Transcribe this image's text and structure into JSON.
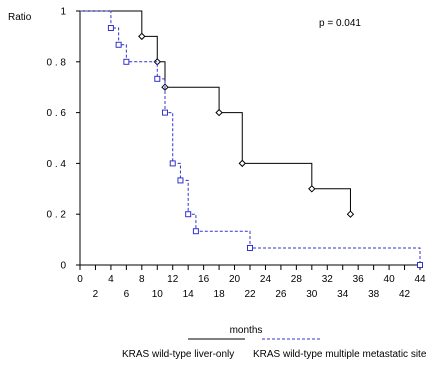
{
  "chart_data": {
    "type": "line",
    "subtype": "kaplan-meier step",
    "ylabel": "Ratio",
    "xlabel": "months",
    "annotation": "p = 0.041",
    "xlim": [
      0,
      44
    ],
    "ylim": [
      0,
      1
    ],
    "x_ticks_upper": [
      "0",
      "4",
      "8",
      "12",
      "16",
      "20",
      "24",
      "28",
      "32",
      "36",
      "40",
      "44"
    ],
    "x_ticks_lower": [
      "2",
      "6",
      "10",
      "14",
      "18",
      "22",
      "26",
      "30",
      "34",
      "38",
      "42"
    ],
    "y_ticks": [
      {
        "value": 0,
        "label": "0"
      },
      {
        "value": 0.2,
        "label": "0 . 2"
      },
      {
        "value": 0.4,
        "label": "0 . 4"
      },
      {
        "value": 0.6,
        "label": "0 . 6"
      },
      {
        "value": 0.8,
        "label": "0 . 8"
      },
      {
        "value": 1,
        "label": "1"
      }
    ],
    "series": [
      {
        "name": "KRAS wild-type liver-only",
        "color": "#000000",
        "style": "solid",
        "marker": "diamond",
        "steps": [
          {
            "x": 0,
            "y": 1.0
          },
          {
            "x": 8,
            "y": 0.9
          },
          {
            "x": 10,
            "y": 0.8
          },
          {
            "x": 11,
            "y": 0.7
          },
          {
            "x": 18,
            "y": 0.6
          },
          {
            "x": 21,
            "y": 0.4
          },
          {
            "x": 30,
            "y": 0.3
          },
          {
            "x": 35,
            "y": 0.2
          }
        ],
        "end_x": 35
      },
      {
        "name": "KRAS wild-type multiple metastatic site",
        "color": "#3333cc",
        "style": "dashed",
        "marker": "square",
        "steps": [
          {
            "x": 0,
            "y": 1.0
          },
          {
            "x": 4,
            "y": 0.933
          },
          {
            "x": 5,
            "y": 0.867
          },
          {
            "x": 6,
            "y": 0.8
          },
          {
            "x": 10,
            "y": 0.733
          },
          {
            "x": 11,
            "y": 0.6
          },
          {
            "x": 12,
            "y": 0.4
          },
          {
            "x": 13,
            "y": 0.333
          },
          {
            "x": 14,
            "y": 0.2
          },
          {
            "x": 15,
            "y": 0.133
          },
          {
            "x": 22,
            "y": 0.067
          },
          {
            "x": 44,
            "y": 0.0
          }
        ],
        "end_x": 44
      }
    ]
  }
}
